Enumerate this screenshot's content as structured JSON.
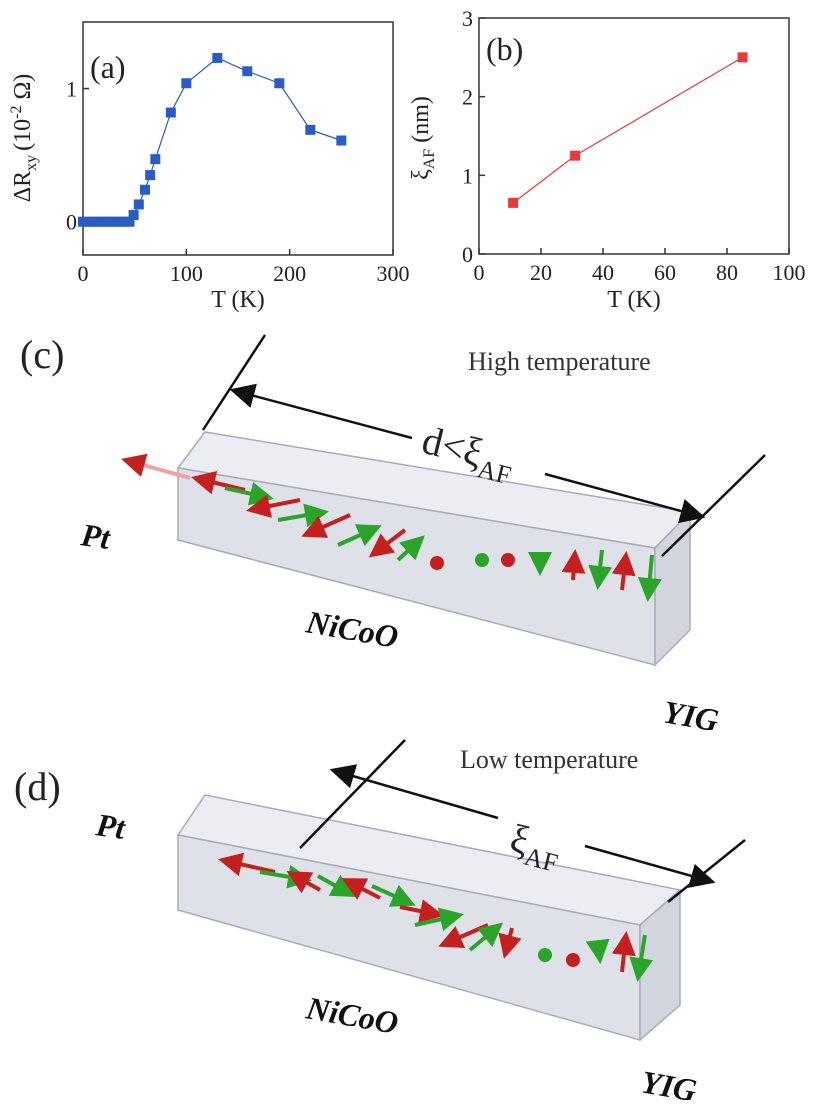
{
  "chart_data": [
    {
      "type": "line",
      "panel": "(a)",
      "xlabel": "T (K)",
      "ylabel": [
        "ΔR",
        "xy",
        "(10",
        "-2",
        " Ω)"
      ],
      "x": [
        0,
        5,
        10,
        15,
        20,
        25,
        30,
        35,
        40,
        45,
        49,
        54,
        60,
        65,
        70,
        85,
        100,
        130,
        159,
        190,
        220,
        250
      ],
      "values": [
        0,
        0,
        0,
        0,
        0,
        0,
        0,
        0,
        0,
        0,
        0.05,
        0.13,
        0.24,
        0.35,
        0.47,
        0.82,
        1.04,
        1.23,
        1.13,
        1.04,
        0.69,
        0.61
      ],
      "color": "#2a5cc4",
      "xlim": [
        0,
        300
      ],
      "ylim": [
        -0.25,
        1.5
      ],
      "xticks": [
        0,
        100,
        200,
        300
      ],
      "yticks": [
        0,
        1
      ]
    },
    {
      "type": "line",
      "panel": "(b)",
      "xlabel": "T (K)",
      "ylabel": [
        "ξ",
        "AF",
        " (nm)"
      ],
      "x": [
        11,
        31,
        85
      ],
      "values": [
        0.65,
        1.25,
        2.5
      ],
      "color": "#e83a3a",
      "xlim": [
        0,
        100
      ],
      "ylim": [
        0,
        3
      ],
      "xticks": [
        0,
        20,
        40,
        60,
        80,
        100
      ],
      "yticks": [
        0,
        1,
        2,
        3
      ]
    }
  ],
  "diagrams": [
    {
      "panel": "(c)",
      "caption": "High temperature",
      "length": [
        "d<ξ",
        "AF"
      ],
      "left": "Pt",
      "middle": "NiCoO",
      "right": "YIG"
    },
    {
      "panel": "(d)",
      "caption": "Low temperature",
      "length": [
        "ξ",
        "AF"
      ],
      "left": "Pt",
      "middle": "NiCoO",
      "right": "YIG"
    }
  ]
}
